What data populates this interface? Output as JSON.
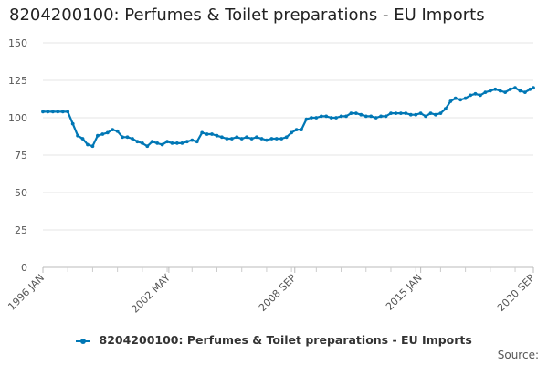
{
  "chart_data": {
    "type": "line",
    "title": "8204200100: Perfumes & Toilet preparations - EU Imports",
    "xlabel": "",
    "ylabel": "",
    "ylim": [
      0,
      150
    ],
    "yticks": [
      0,
      25,
      50,
      75,
      100,
      125,
      150
    ],
    "xlim": [
      "1996-01",
      "2020-09"
    ],
    "xtick_labels": [
      "1996 JAN",
      "2002 MAY",
      "2008 SEP",
      "2015 JAN",
      "2020 SEP"
    ],
    "xtick_values": [
      "1996-01",
      "2002-05",
      "2008-09",
      "2015-01",
      "2020-09"
    ],
    "grid": true,
    "legend_position": "bottom",
    "series": [
      {
        "name": "8204200100: Perfumes & Toilet preparations - EU Imports",
        "color": "#0077b5",
        "x": [
          "1996-01",
          "1996-04",
          "1996-07",
          "1996-10",
          "1997-01",
          "1997-04",
          "1997-07",
          "1997-10",
          "1998-01",
          "1998-04",
          "1998-07",
          "1998-10",
          "1999-01",
          "1999-04",
          "1999-07",
          "1999-10",
          "2000-01",
          "2000-04",
          "2000-07",
          "2000-10",
          "2001-01",
          "2001-04",
          "2001-07",
          "2001-10",
          "2002-01",
          "2002-04",
          "2002-07",
          "2002-10",
          "2003-01",
          "2003-04",
          "2003-07",
          "2003-10",
          "2004-01",
          "2004-04",
          "2004-07",
          "2004-10",
          "2005-01",
          "2005-04",
          "2005-07",
          "2005-10",
          "2006-01",
          "2006-04",
          "2006-07",
          "2006-10",
          "2007-01",
          "2007-04",
          "2007-07",
          "2007-10",
          "2008-01",
          "2008-04",
          "2008-07",
          "2008-10",
          "2009-01",
          "2009-04",
          "2009-07",
          "2009-10",
          "2010-01",
          "2010-04",
          "2010-07",
          "2010-10",
          "2011-01",
          "2011-04",
          "2011-07",
          "2011-10",
          "2012-01",
          "2012-04",
          "2012-07",
          "2012-10",
          "2013-01",
          "2013-04",
          "2013-07",
          "2013-10",
          "2014-01",
          "2014-04",
          "2014-07",
          "2014-10",
          "2015-01",
          "2015-04",
          "2015-07",
          "2015-10",
          "2016-01",
          "2016-04",
          "2016-07",
          "2016-10",
          "2017-01",
          "2017-04",
          "2017-07",
          "2017-10",
          "2018-01",
          "2018-04",
          "2018-07",
          "2018-10",
          "2019-01",
          "2019-04",
          "2019-07",
          "2019-10",
          "2020-01",
          "2020-04",
          "2020-07",
          "2020-09"
        ],
        "values": [
          104,
          104,
          104,
          104,
          104,
          104,
          96,
          88,
          86,
          82,
          81,
          88,
          89,
          90,
          92,
          91,
          87,
          87,
          86,
          84,
          83,
          81,
          84,
          83,
          82,
          84,
          83,
          83,
          83,
          84,
          85,
          84,
          90,
          89,
          89,
          88,
          87,
          86,
          86,
          87,
          86,
          87,
          86,
          87,
          86,
          85,
          86,
          86,
          86,
          87,
          90,
          92,
          92,
          99,
          100,
          100,
          101,
          101,
          100,
          100,
          101,
          101,
          103,
          103,
          102,
          101,
          101,
          100,
          101,
          101,
          103,
          103,
          103,
          103,
          102,
          102,
          103,
          101,
          103,
          102,
          103,
          106,
          111,
          113,
          112,
          113,
          115,
          116,
          115,
          117,
          118,
          119,
          118,
          117,
          119,
          120,
          118,
          117,
          119,
          120
        ]
      }
    ],
    "source_label": "Source:"
  }
}
